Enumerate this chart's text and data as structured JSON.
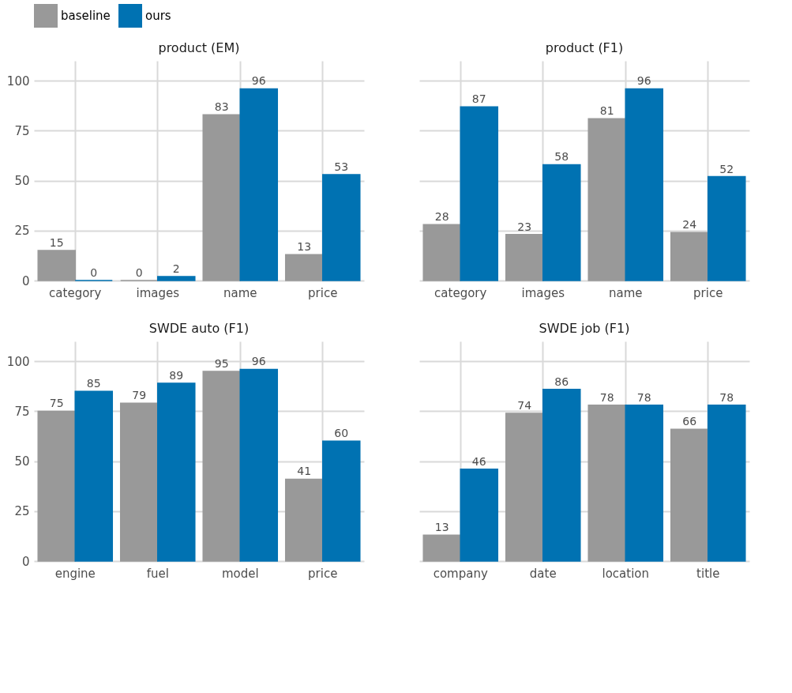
{
  "chart_data": [
    {
      "type": "bar",
      "title": "product (EM)",
      "categories": [
        "category",
        "images",
        "name",
        "price"
      ],
      "series": [
        {
          "name": "baseline",
          "color": "#999999",
          "values": [
            15,
            0,
            83,
            13
          ]
        },
        {
          "name": "ours",
          "color": "#0072b2",
          "values": [
            0,
            2,
            96,
            53
          ]
        }
      ],
      "ylim": [
        0,
        110
      ],
      "yticks": [
        0,
        25,
        50,
        75,
        100
      ],
      "grid": true,
      "data_labels": true,
      "legend": "top"
    },
    {
      "type": "bar",
      "title": "product (F1)",
      "categories": [
        "category",
        "images",
        "name",
        "price"
      ],
      "series": [
        {
          "name": "baseline",
          "color": "#999999",
          "values": [
            28,
            23,
            81,
            24
          ]
        },
        {
          "name": "ours",
          "color": "#0072b2",
          "values": [
            87,
            58,
            96,
            52
          ]
        }
      ],
      "ylim": [
        0,
        110
      ],
      "yticks": [
        0,
        25,
        50,
        75,
        100
      ],
      "grid": true,
      "data_labels": true,
      "legend": "top",
      "tick_labels": "x"
    },
    {
      "type": "bar",
      "title": "SWDE auto (F1)",
      "categories": [
        "engine",
        "fuel",
        "model",
        "price"
      ],
      "series": [
        {
          "name": "baseline",
          "color": "#999999",
          "values": [
            75,
            79,
            95,
            41
          ]
        },
        {
          "name": "ours",
          "color": "#0072b2",
          "values": [
            85,
            89,
            96,
            60
          ]
        }
      ],
      "ylim": [
        0,
        110
      ],
      "yticks": [
        0,
        25,
        50,
        75,
        100
      ],
      "grid": true,
      "data_labels": true,
      "legend": "top"
    },
    {
      "type": "bar",
      "title": "SWDE job (F1)",
      "categories": [
        "company",
        "date",
        "location",
        "title"
      ],
      "series": [
        {
          "name": "baseline",
          "color": "#999999",
          "values": [
            13,
            74,
            78,
            66
          ]
        },
        {
          "name": "ours",
          "color": "#0072b2",
          "values": [
            46,
            86,
            78,
            78
          ]
        }
      ],
      "ylim": [
        0,
        110
      ],
      "yticks": [
        0,
        25,
        50,
        75,
        100
      ],
      "grid": true,
      "data_labels": true,
      "legend": "top",
      "tick_labels": "x"
    }
  ]
}
